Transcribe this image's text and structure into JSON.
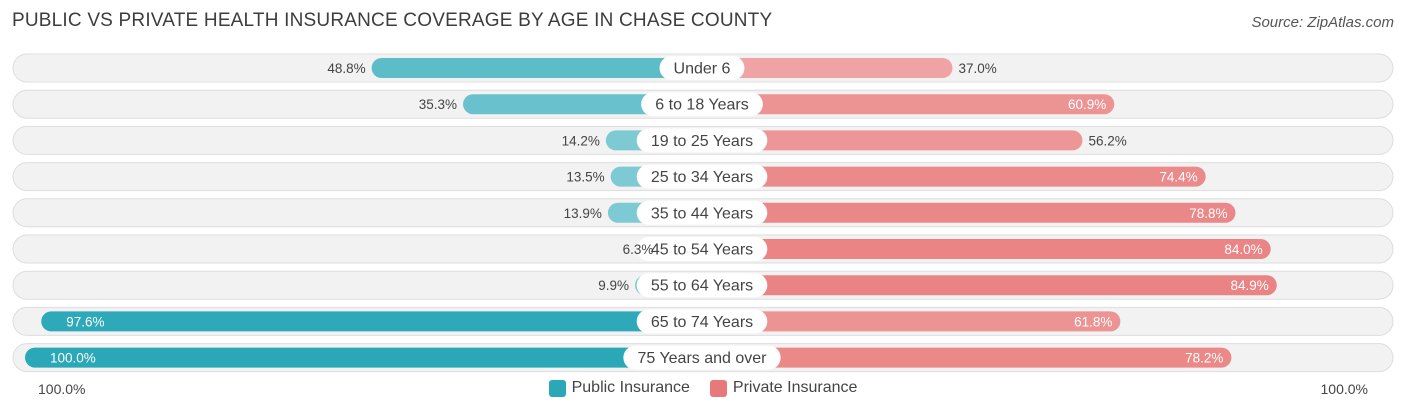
{
  "header": {
    "title": "PUBLIC VS PRIVATE HEALTH INSURANCE COVERAGE BY AGE IN CHASE COUNTY",
    "source": "Source: ZipAtlas.com"
  },
  "axis": {
    "left_label": "100.0%",
    "right_label": "100.0%"
  },
  "legend": [
    {
      "label": "Public Insurance",
      "color": "#2ba8b8"
    },
    {
      "label": "Private Insurance",
      "color": "#e8797a"
    }
  ],
  "chart_data": {
    "type": "bar",
    "orientation": "horizontal-diverging",
    "categories": [
      "Under 6",
      "6 to 18 Years",
      "19 to 25 Years",
      "25 to 34 Years",
      "35 to 44 Years",
      "45 to 54 Years",
      "55 to 64 Years",
      "65 to 74 Years",
      "75 Years and over"
    ],
    "series": [
      {
        "name": "Public Insurance",
        "values": [
          48.8,
          35.3,
          14.2,
          13.5,
          13.9,
          6.3,
          9.9,
          97.6,
          100.0
        ],
        "labels": [
          "48.8%",
          "35.3%",
          "14.2%",
          "13.5%",
          "13.9%",
          "6.3%",
          "9.9%",
          "97.6%",
          "100.0%"
        ],
        "color": "#2ba8b8"
      },
      {
        "name": "Private Insurance",
        "values": [
          37.0,
          60.9,
          56.2,
          74.4,
          78.8,
          84.0,
          84.9,
          61.8,
          78.2
        ],
        "labels": [
          "37.0%",
          "60.9%",
          "56.2%",
          "74.4%",
          "78.8%",
          "84.0%",
          "84.9%",
          "61.8%",
          "78.2%"
        ],
        "color": "#e8797a"
      }
    ],
    "xlim": [
      -100,
      100
    ],
    "legend_position": "bottom-center"
  }
}
